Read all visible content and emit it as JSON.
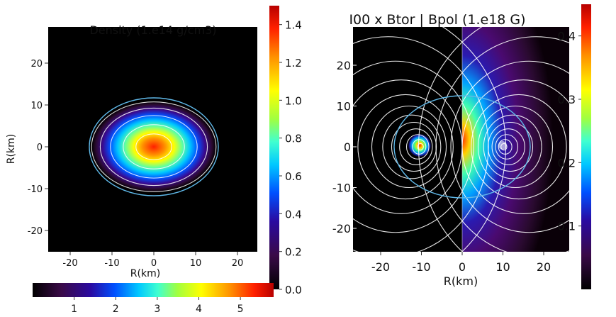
{
  "chart_data": [
    {
      "type": "heatmap",
      "title": "Density (1.e14 g/cm3)",
      "xlabel": "R(km)",
      "ylabel": "R(km)",
      "x_ticks": [
        -20,
        -10,
        0,
        10,
        20
      ],
      "y_ticks": [
        20,
        10,
        0,
        -10,
        -20
      ],
      "xlim": [
        -25,
        25
      ],
      "ylim": [
        -25,
        25
      ],
      "colorbar": {
        "ticks": [
          "0.0",
          "0.2",
          "0.4",
          "0.6",
          "0.8",
          "1.0",
          "1.2",
          "1.4"
        ],
        "tick_values": [
          0.0,
          0.2,
          0.4,
          0.6,
          0.8,
          1.0,
          1.2,
          1.4
        ],
        "range": [
          0,
          1.5
        ],
        "orientation": "vertical"
      },
      "colorbar_horizontal": {
        "ticks": [
          "1",
          "2",
          "3",
          "4",
          "5"
        ],
        "tick_values": [
          1,
          2,
          3,
          4,
          5
        ],
        "range": [
          0,
          5.8
        ],
        "orientation": "horizontal"
      },
      "contour_radii_km": [
        3.5,
        6,
        8.5,
        10.5,
        12.2
      ],
      "surface_contour_km": [
        15.5,
        13.8
      ]
    },
    {
      "type": "heatmap",
      "title": "I00 x Btor | Bpol (1.e18 G)",
      "xlabel": "R(km)",
      "ylabel": "",
      "x_ticks": [
        -20,
        -10,
        0,
        10,
        20
      ],
      "y_ticks": [
        20,
        10,
        0,
        -10,
        -20
      ],
      "xlim": [
        -27,
        27
      ],
      "ylim": [
        -27,
        27
      ],
      "loop_centers_km": [
        -10,
        10
      ],
      "colorbar": {
        "ticks": [
          "0.1",
          "0.2",
          "0.3",
          "0.4"
        ],
        "tick_values": [
          0.1,
          0.2,
          0.3,
          0.4
        ],
        "range": [
          0,
          0.45
        ],
        "orientation": "vertical"
      }
    }
  ],
  "colors": {
    "surface_contour": "#5fb8e8",
    "contour": "#ffffff",
    "background": "#000000"
  }
}
